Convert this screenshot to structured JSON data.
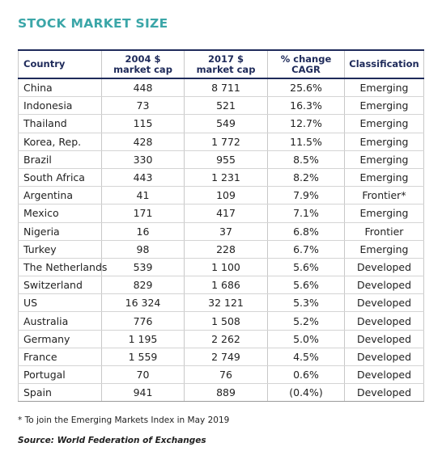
{
  "title": "STOCK MARKET SIZE",
  "table": {
    "headers": [
      [
        "Country"
      ],
      [
        "2004 $",
        "market cap"
      ],
      [
        "2017 $",
        "market cap"
      ],
      [
        "% change",
        "CAGR"
      ],
      [
        "Classification"
      ]
    ],
    "rows": [
      [
        "China",
        "448",
        "8 711",
        "25.6%",
        "Emerging"
      ],
      [
        "Indonesia",
        "73",
        "521",
        "16.3%",
        "Emerging"
      ],
      [
        "Thailand",
        "115",
        "549",
        "12.7%",
        "Emerging"
      ],
      [
        "Korea, Rep.",
        "428",
        "1 772",
        "11.5%",
        "Emerging"
      ],
      [
        "Brazil",
        "330",
        "955",
        "8.5%",
        "Emerging"
      ],
      [
        "South Africa",
        "443",
        "1 231",
        "8.2%",
        "Emerging"
      ],
      [
        "Argentina",
        "41",
        "109",
        "7.9%",
        "Frontier*"
      ],
      [
        "Mexico",
        "171",
        "417",
        "7.1%",
        "Emerging"
      ],
      [
        "Nigeria",
        "16",
        "37",
        "6.8%",
        "Frontier"
      ],
      [
        "Turkey",
        "98",
        "228",
        "6.7%",
        "Emerging"
      ],
      [
        "The Netherlands",
        "539",
        "1 100",
        "5.6%",
        "Developed"
      ],
      [
        "Switzerland",
        "829",
        "1 686",
        "5.6%",
        "Developed"
      ],
      [
        "US",
        "16 324",
        "32 121",
        "5.3%",
        "Developed"
      ],
      [
        "Australia",
        "776",
        "1 508",
        "5.2%",
        "Developed"
      ],
      [
        "Germany",
        "1 195",
        "2 262",
        "5.0%",
        "Developed"
      ],
      [
        "France",
        "1 559",
        "2 749",
        "4.5%",
        "Developed"
      ],
      [
        "Portugal",
        "70",
        "76",
        "0.6%",
        "Developed"
      ],
      [
        "Spain",
        "941",
        "889",
        "(0.4%)",
        "Developed"
      ]
    ]
  },
  "footnote": "* To join the Emerging Markets Index in May 2019",
  "source": "Source: World Federation of Exchanges"
}
